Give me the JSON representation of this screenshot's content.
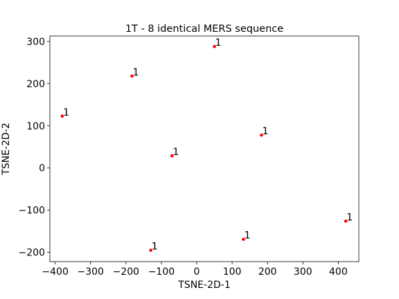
{
  "chart_data": {
    "type": "scatter",
    "title": "1T - 8 identical MERS sequence",
    "xlabel": "TSNE-2D-1",
    "ylabel": "TSNE-2D-2",
    "xlim": [
      -415,
      458
    ],
    "ylim": [
      -222,
      313
    ],
    "xticks": [
      -400,
      -300,
      -200,
      -100,
      0,
      100,
      200,
      300,
      400
    ],
    "yticks": [
      -200,
      -100,
      0,
      100,
      200,
      300
    ],
    "xtick_labels": [
      "−400",
      "−300",
      "−200",
      "−100",
      "0",
      "100",
      "200",
      "300",
      "400"
    ],
    "ytick_labels": [
      "−200",
      "−100",
      "0",
      "100",
      "200",
      "300"
    ],
    "grid": false,
    "marker_color": "#ff0000",
    "points": [
      {
        "x": 50,
        "y": 288,
        "label": "1"
      },
      {
        "x": -183,
        "y": 218,
        "label": "1"
      },
      {
        "x": -380,
        "y": 123,
        "label": "1"
      },
      {
        "x": 183,
        "y": 78,
        "label": "1"
      },
      {
        "x": -70,
        "y": 29,
        "label": "1"
      },
      {
        "x": 421,
        "y": -126,
        "label": "1"
      },
      {
        "x": 132,
        "y": -169,
        "label": "1"
      },
      {
        "x": -130,
        "y": -195,
        "label": "1"
      }
    ]
  }
}
